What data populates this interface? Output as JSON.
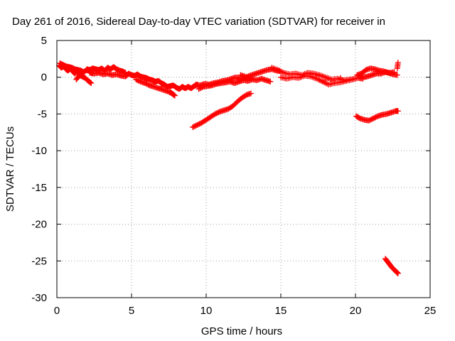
{
  "chart_data": {
    "type": "scatter",
    "title": "Day 261 of 2016, Sidereal Day-to-day VTEC variation (SDTVAR) for receiver in",
    "xlabel": "GPS time / hours",
    "ylabel": "SDTVAR / TECUs",
    "xlim": [
      0,
      25
    ],
    "ylim": [
      -30,
      5
    ],
    "xticks": [
      0,
      5,
      10,
      15,
      20,
      25
    ],
    "yticks": [
      5,
      0,
      -5,
      -10,
      -15,
      -20,
      -25,
      -30
    ],
    "grid": true,
    "marker": "plus",
    "color": "#ff0000",
    "series": [
      {
        "points": [
          [
            0.15,
            1.6
          ],
          [
            0.3,
            1.3
          ],
          [
            0.45,
            1.5
          ],
          [
            0.6,
            1.1
          ],
          [
            0.75,
            0.9
          ],
          [
            0.9,
            1.2
          ],
          [
            1.05,
            0.8
          ],
          [
            1.2,
            0.5
          ],
          [
            1.35,
            0.9
          ],
          [
            1.5,
            0.3
          ],
          [
            1.7,
            0.1
          ],
          [
            1.9,
            -0.1
          ],
          [
            2.1,
            -0.5
          ],
          [
            2.3,
            -0.8
          ],
          [
            1.3,
            -0.3
          ],
          [
            1.5,
            0.2
          ],
          [
            0.2,
            1.9
          ],
          [
            0.4,
            1.7
          ],
          [
            0.6,
            1.5
          ],
          [
            0.8,
            1.4
          ],
          [
            1.0,
            1.3
          ],
          [
            1.2,
            1.1
          ],
          [
            1.4,
            1.0
          ],
          [
            1.6,
            0.9
          ],
          [
            1.8,
            0.7
          ],
          [
            2.0,
            1.0
          ],
          [
            2.2,
            0.8
          ],
          [
            2.4,
            0.5
          ],
          [
            2.0,
            1.1
          ],
          [
            2.2,
            1.0
          ],
          [
            2.4,
            1.2
          ],
          [
            2.6,
            1.1
          ],
          [
            2.8,
            1.0
          ],
          [
            3.0,
            1.2
          ],
          [
            3.2,
            0.9
          ],
          [
            3.4,
            1.3
          ],
          [
            3.6,
            1.1
          ],
          [
            3.8,
            1.4
          ],
          [
            4.0,
            1.1
          ],
          [
            4.2,
            0.9
          ],
          [
            4.4,
            0.8
          ],
          [
            4.6,
            0.6
          ],
          [
            2.2,
            0.6
          ],
          [
            2.5,
            0.5
          ],
          [
            2.8,
            0.6
          ],
          [
            3.1,
            0.4
          ],
          [
            3.4,
            0.5
          ],
          [
            3.7,
            0.3
          ],
          [
            4.0,
            0.4
          ],
          [
            4.3,
            0.2
          ],
          [
            4.6,
            0.1
          ],
          [
            4.8,
            0.5
          ],
          [
            5.0,
            0.3
          ],
          [
            5.2,
            0.2
          ],
          [
            5.4,
            0.4
          ],
          [
            5.6,
            0.1
          ],
          [
            5.8,
            0.0
          ],
          [
            6.0,
            -0.1
          ],
          [
            6.2,
            -0.3
          ],
          [
            6.4,
            -0.4
          ],
          [
            6.6,
            -0.6
          ],
          [
            6.8,
            -0.5
          ],
          [
            7.0,
            -0.8
          ],
          [
            7.2,
            -1.0
          ],
          [
            7.4,
            -1.3
          ],
          [
            7.6,
            -1.2
          ],
          [
            7.8,
            -1.1
          ],
          [
            8.0,
            -1.4
          ],
          [
            8.2,
            -1.6
          ],
          [
            8.4,
            -1.3
          ],
          [
            8.6,
            -1.5
          ],
          [
            8.8,
            -1.3
          ],
          [
            9.0,
            -1.5
          ],
          [
            9.2,
            -1.2
          ],
          [
            9.4,
            -1.0
          ],
          [
            5.3,
            -0.3
          ],
          [
            5.6,
            -0.6
          ],
          [
            5.9,
            -0.8
          ],
          [
            6.2,
            -1.1
          ],
          [
            6.5,
            -1.3
          ],
          [
            6.8,
            -1.5
          ],
          [
            7.1,
            -1.7
          ],
          [
            7.4,
            -1.9
          ],
          [
            7.7,
            -2.2
          ],
          [
            7.9,
            -2.5
          ],
          [
            7.6,
            -2.0
          ],
          [
            6.0,
            -0.5
          ],
          [
            6.5,
            -0.9
          ],
          [
            7.0,
            -1.3
          ],
          [
            9.3,
            -1.0
          ],
          [
            9.6,
            -1.1
          ],
          [
            9.9,
            -0.9
          ],
          [
            10.2,
            -1.0
          ],
          [
            10.5,
            -0.8
          ],
          [
            10.8,
            -0.7
          ],
          [
            11.1,
            -0.5
          ],
          [
            11.4,
            -0.4
          ],
          [
            11.7,
            -0.2
          ],
          [
            12.0,
            0.0
          ],
          [
            12.3,
            -0.3
          ],
          [
            12.6,
            -0.1
          ],
          [
            12.9,
            0.2
          ],
          [
            13.2,
            0.4
          ],
          [
            13.5,
            0.6
          ],
          [
            13.8,
            0.8
          ],
          [
            14.1,
            1.0
          ],
          [
            14.4,
            1.1
          ],
          [
            14.7,
            0.9
          ],
          [
            15.0,
            0.8
          ],
          [
            9.5,
            -1.6
          ],
          [
            9.8,
            -1.3
          ],
          [
            10.1,
            -1.2
          ],
          [
            10.4,
            -1.1
          ],
          [
            10.7,
            -0.9
          ],
          [
            11.0,
            -0.8
          ],
          [
            11.3,
            -0.7
          ],
          [
            11.6,
            -0.6
          ],
          [
            11.9,
            -0.8
          ],
          [
            12.2,
            -0.6
          ],
          [
            12.5,
            -0.4
          ],
          [
            12.8,
            -0.5
          ],
          [
            13.1,
            -0.3
          ],
          [
            13.4,
            -0.4
          ],
          [
            13.7,
            -0.2
          ],
          [
            14.0,
            -0.4
          ],
          [
            14.3,
            -0.6
          ],
          [
            12.3,
            0.3
          ],
          [
            12.6,
            0.1
          ],
          [
            13.0,
            -0.2
          ],
          [
            14.4,
            1.3
          ],
          [
            14.8,
            1.0
          ],
          [
            15.2,
            0.6
          ],
          [
            15.6,
            0.4
          ],
          [
            16.0,
            0.5
          ],
          [
            16.4,
            0.3
          ],
          [
            16.8,
            0.6
          ],
          [
            17.2,
            0.5
          ],
          [
            17.6,
            0.3
          ],
          [
            18.0,
            0.0
          ],
          [
            18.4,
            -0.3
          ],
          [
            18.8,
            -0.2
          ],
          [
            19.2,
            -0.4
          ],
          [
            19.6,
            -0.3
          ],
          [
            20.0,
            -0.2
          ],
          [
            15.0,
            0.0
          ],
          [
            15.4,
            -0.2
          ],
          [
            15.8,
            0.0
          ],
          [
            16.2,
            -0.1
          ],
          [
            16.6,
            0.2
          ],
          [
            17.0,
            0.1
          ],
          [
            17.4,
            -0.2
          ],
          [
            17.8,
            -0.6
          ],
          [
            18.2,
            -1.0
          ],
          [
            18.6,
            -0.8
          ],
          [
            19.0,
            -0.7
          ],
          [
            19.4,
            -0.5
          ],
          [
            19.8,
            -0.3
          ],
          [
            20.2,
            -0.1
          ],
          [
            20.5,
            -0.2
          ],
          [
            17.0,
            0.4
          ],
          [
            17.5,
            0.2
          ],
          [
            18.0,
            -0.4
          ],
          [
            18.5,
            -0.5
          ],
          [
            19.0,
            -0.1
          ],
          [
            20.1,
            0.3
          ],
          [
            20.4,
            0.5
          ],
          [
            20.7,
            1.0
          ],
          [
            21.0,
            1.2
          ],
          [
            21.3,
            1.1
          ],
          [
            21.6,
            0.9
          ],
          [
            21.9,
            0.8
          ],
          [
            22.2,
            0.6
          ],
          [
            22.5,
            0.4
          ],
          [
            22.8,
            0.3
          ],
          [
            22.85,
            2.0
          ],
          [
            22.8,
            1.2
          ],
          [
            20.2,
            0.2
          ],
          [
            20.5,
            0.0
          ],
          [
            20.8,
            0.1
          ],
          [
            21.1,
            0.3
          ],
          [
            21.4,
            0.5
          ],
          [
            21.7,
            0.5
          ],
          [
            22.0,
            0.7
          ],
          [
            22.3,
            0.6
          ],
          [
            22.6,
            0.7
          ],
          [
            9.1,
            -6.8
          ],
          [
            9.4,
            -6.5
          ],
          [
            9.7,
            -6.2
          ],
          [
            10.0,
            -5.8
          ],
          [
            10.3,
            -5.4
          ],
          [
            10.6,
            -5.0
          ],
          [
            10.9,
            -4.7
          ],
          [
            11.2,
            -4.5
          ],
          [
            11.5,
            -4.3
          ],
          [
            11.8,
            -3.9
          ],
          [
            12.1,
            -3.3
          ],
          [
            12.4,
            -2.8
          ],
          [
            12.7,
            -2.4
          ],
          [
            13.0,
            -2.2
          ],
          [
            20.05,
            -5.3
          ],
          [
            20.3,
            -5.6
          ],
          [
            20.6,
            -5.8
          ],
          [
            20.9,
            -5.9
          ],
          [
            21.2,
            -5.6
          ],
          [
            21.5,
            -5.3
          ],
          [
            21.8,
            -5.1
          ],
          [
            22.1,
            -5.0
          ],
          [
            22.4,
            -4.8
          ],
          [
            22.7,
            -4.6
          ],
          [
            22.85,
            -4.6
          ],
          [
            22.0,
            -24.7
          ],
          [
            22.15,
            -25.1
          ],
          [
            22.3,
            -25.5
          ],
          [
            22.45,
            -25.9
          ],
          [
            22.6,
            -26.2
          ],
          [
            22.75,
            -26.5
          ],
          [
            22.85,
            -26.7
          ]
        ]
      }
    ]
  }
}
